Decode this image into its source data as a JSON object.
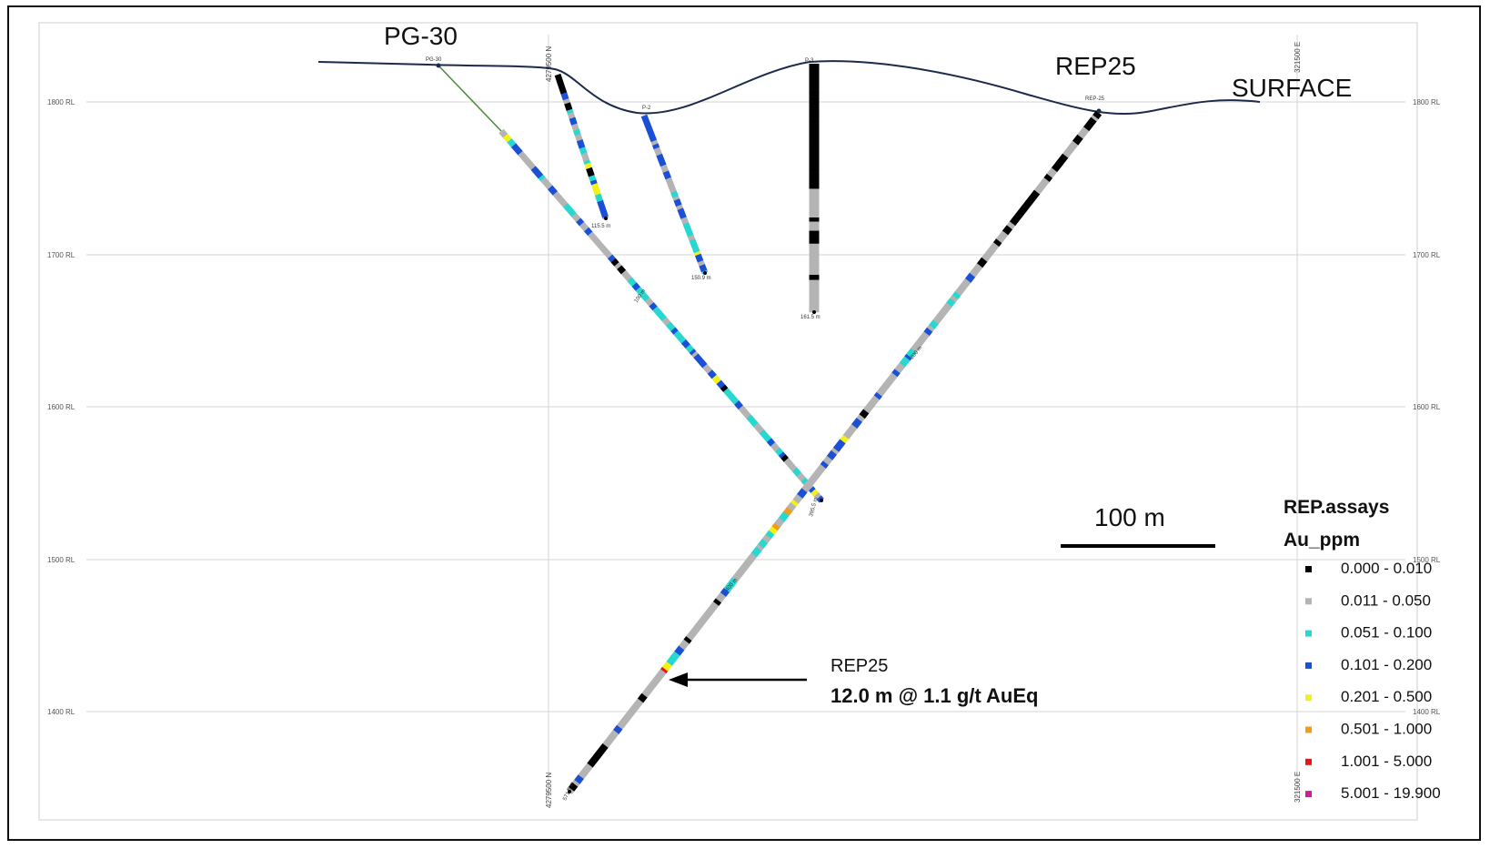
{
  "labels": {
    "hole_pg30": "PG-30",
    "hole_rep25": "REP25",
    "surface": "SURFACE",
    "hole_p2": "P-2",
    "hole_p3": "P-3",
    "collar_pg30": "PG-30",
    "collar_rep25": "REP-25",
    "northing_top": "4279500 N",
    "northing_bottom": "4279500 N",
    "easting_top": "321500 E",
    "easting_bottom": "321500 E"
  },
  "elevations": {
    "rl_1800": "1800 RL",
    "rl_1700": "1700 RL",
    "rl_1600": "1600 RL",
    "rl_1500": "1500 RL",
    "rl_1400": "1400 RL"
  },
  "depth_labels": {
    "p2_eoh": "115.5 m",
    "p2b_eoh": "150.9 m",
    "p3_eoh": "161.5 m",
    "pg30_eoh": "395.5 m",
    "rep25_eoh": "571.5 m",
    "pg30_mid": "100 m",
    "rep25_mid1": "200 m",
    "rep25_mid2": "400 m"
  },
  "scale_bar": {
    "label": "100 m"
  },
  "legend": {
    "title": "REP.assays",
    "subtitle": "Au_ppm",
    "items": [
      {
        "label": "0.000 - 0.010",
        "color": "#000000"
      },
      {
        "label": "0.011 - 0.050",
        "color": "#b4b4b4"
      },
      {
        "label": "0.051 - 0.100",
        "color": "#28d8d0"
      },
      {
        "label": "0.101 - 0.200",
        "color": "#1a4fd6"
      },
      {
        "label": "0.201 - 0.500",
        "color": "#f2f21a"
      },
      {
        "label": "0.501 - 1.000",
        "color": "#f29c1a"
      },
      {
        "label": "1.001 - 5.000",
        "color": "#e01a1a"
      },
      {
        "label": "5.001 - 19.900",
        "color": "#d41a9c"
      }
    ]
  },
  "callout": {
    "hole": "REP25",
    "intercept": "12.0 m @ 1.1 g/t AuEq"
  },
  "colors": {
    "surface_line": "#1c2b4a",
    "grid": "#d4d4d4",
    "pg30_trace": "#4a8a3a"
  }
}
